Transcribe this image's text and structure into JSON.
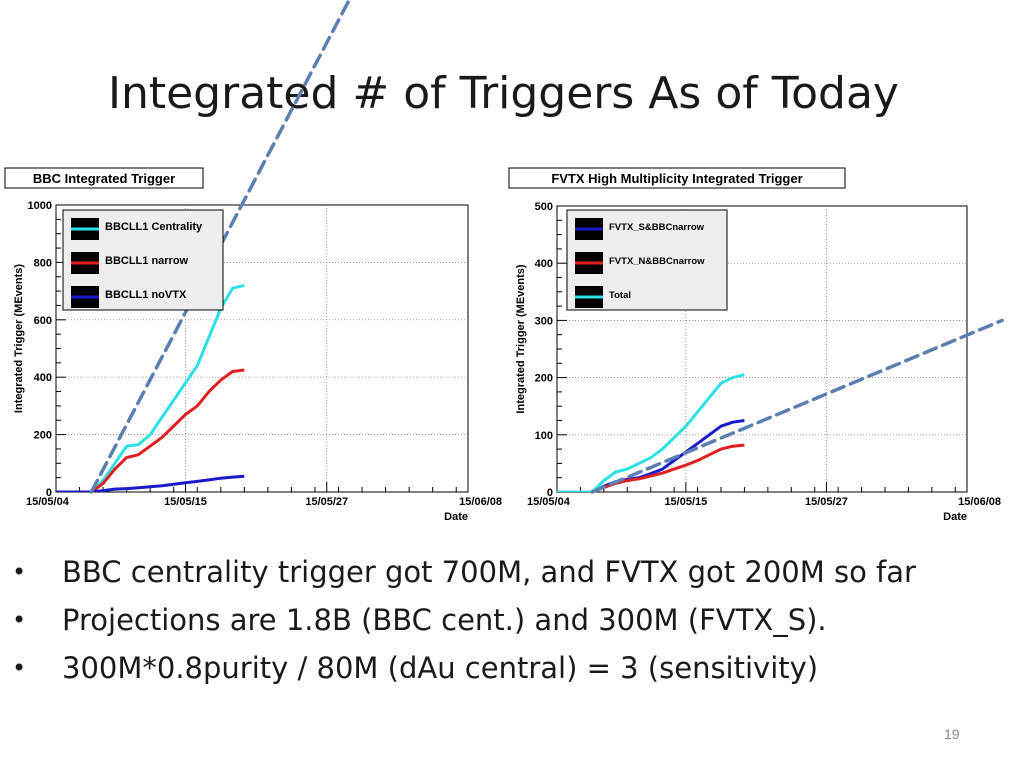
{
  "slide": {
    "title": "Integrated # of Triggers As of Today",
    "page_number": "19",
    "bullets": [
      "BBC centrality trigger got 700M, and FVTX got 200M so far",
      "Projections are 1.8B (BBC cent.) and 300M (FVTX_S).",
      "300M*0.8purity / 80M (dAu central) = 3 (sensitivity)"
    ]
  },
  "chart_data": [
    {
      "type": "line",
      "title": "BBC Integrated Trigger",
      "xlabel": "Date",
      "ylabel": "Integrated Trigger (MEvents)",
      "x_ticks": [
        "15/05/04",
        "15/05/15",
        "15/05/27",
        "15/06/08"
      ],
      "y_ticks": [
        "0",
        "200",
        "400",
        "600",
        "800",
        "1000"
      ],
      "ylim": [
        0,
        1000
      ],
      "grid": true,
      "legend_position": "top-left",
      "series": [
        {
          "name": "BBCLL1 Centrality",
          "color": "#2de0e6",
          "points": [
            [
              "15/05/04",
              0
            ],
            [
              "15/05/07",
              0
            ],
            [
              "15/05/08",
              40
            ],
            [
              "15/05/09",
              100
            ],
            [
              "15/05/10",
              160
            ],
            [
              "15/05/11",
              165
            ],
            [
              "15/05/12",
              200
            ],
            [
              "15/05/13",
              260
            ],
            [
              "15/05/14",
              320
            ],
            [
              "15/05/15",
              380
            ],
            [
              "15/05/16",
              440
            ],
            [
              "15/05/17",
              540
            ],
            [
              "15/05/18",
              640
            ],
            [
              "15/05/19",
              710
            ],
            [
              "15/05/20",
              720
            ]
          ]
        },
        {
          "name": "BBCLL1 narrow",
          "color": "#e02020",
          "points": [
            [
              "15/05/04",
              0
            ],
            [
              "15/05/07",
              0
            ],
            [
              "15/05/08",
              30
            ],
            [
              "15/05/09",
              80
            ],
            [
              "15/05/10",
              120
            ],
            [
              "15/05/11",
              130
            ],
            [
              "15/05/12",
              160
            ],
            [
              "15/05/13",
              190
            ],
            [
              "15/05/14",
              230
            ],
            [
              "15/05/15",
              270
            ],
            [
              "15/05/16",
              300
            ],
            [
              "15/05/17",
              350
            ],
            [
              "15/05/18",
              390
            ],
            [
              "15/05/19",
              420
            ],
            [
              "15/05/20",
              425
            ]
          ]
        },
        {
          "name": "BBCLL1 noVTX",
          "color": "#1a1acc",
          "points": [
            [
              "15/05/04",
              0
            ],
            [
              "15/05/07",
              0
            ],
            [
              "15/05/08",
              5
            ],
            [
              "15/05/09",
              10
            ],
            [
              "15/05/10",
              12
            ],
            [
              "15/05/11",
              15
            ],
            [
              "15/05/12",
              18
            ],
            [
              "15/05/13",
              22
            ],
            [
              "15/05/14",
              27
            ],
            [
              "15/05/15",
              32
            ],
            [
              "15/05/16",
              37
            ],
            [
              "15/05/17",
              42
            ],
            [
              "15/05/18",
              48
            ],
            [
              "15/05/19",
              52
            ],
            [
              "15/05/20",
              55
            ]
          ]
        }
      ],
      "projection": {
        "color": "#5b7fb0",
        "points": [
          [
            "15/05/07",
            0
          ],
          [
            "15/05/30",
            1800
          ]
        ]
      }
    },
    {
      "type": "line",
      "title": "FVTX High Multiplicity Integrated Trigger",
      "xlabel": "Date",
      "ylabel": "Integrated Trigger (MEvents)",
      "x_ticks": [
        "15/05/04",
        "15/05/15",
        "15/05/27",
        "15/06/08"
      ],
      "y_ticks": [
        "0",
        "100",
        "200",
        "300",
        "400",
        "500"
      ],
      "ylim": [
        0,
        500
      ],
      "grid": true,
      "legend_position": "top-left",
      "series": [
        {
          "name": "FVTX_S&BBCnarrow",
          "color": "#1a1acc",
          "points": [
            [
              "15/05/04",
              0
            ],
            [
              "15/05/07",
              0
            ],
            [
              "15/05/08",
              10
            ],
            [
              "15/05/09",
              18
            ],
            [
              "15/05/10",
              22
            ],
            [
              "15/05/11",
              25
            ],
            [
              "15/05/12",
              32
            ],
            [
              "15/05/13",
              40
            ],
            [
              "15/05/14",
              55
            ],
            [
              "15/05/15",
              70
            ],
            [
              "15/05/16",
              85
            ],
            [
              "15/05/17",
              100
            ],
            [
              "15/05/18",
              115
            ],
            [
              "15/05/19",
              122
            ],
            [
              "15/05/20",
              125
            ]
          ]
        },
        {
          "name": "FVTX_N&BBCnarrow",
          "color": "#e02020",
          "points": [
            [
              "15/05/04",
              0
            ],
            [
              "15/05/07",
              0
            ],
            [
              "15/05/08",
              8
            ],
            [
              "15/05/09",
              15
            ],
            [
              "15/05/10",
              20
            ],
            [
              "15/05/11",
              23
            ],
            [
              "15/05/12",
              28
            ],
            [
              "15/05/13",
              33
            ],
            [
              "15/05/14",
              40
            ],
            [
              "15/05/15",
              47
            ],
            [
              "15/05/16",
              55
            ],
            [
              "15/05/17",
              65
            ],
            [
              "15/05/18",
              75
            ],
            [
              "15/05/19",
              80
            ],
            [
              "15/05/20",
              82
            ]
          ]
        },
        {
          "name": "Total",
          "color": "#2de0e6",
          "points": [
            [
              "15/05/04",
              0
            ],
            [
              "15/05/07",
              0
            ],
            [
              "15/05/08",
              20
            ],
            [
              "15/05/09",
              35
            ],
            [
              "15/05/10",
              40
            ],
            [
              "15/05/11",
              50
            ],
            [
              "15/05/12",
              60
            ],
            [
              "15/05/13",
              75
            ],
            [
              "15/05/14",
              95
            ],
            [
              "15/05/15",
              115
            ],
            [
              "15/05/16",
              140
            ],
            [
              "15/05/17",
              165
            ],
            [
              "15/05/18",
              190
            ],
            [
              "15/05/19",
              200
            ],
            [
              "15/05/20",
              205
            ]
          ]
        }
      ],
      "projection": {
        "color": "#5b7fb0",
        "points": [
          [
            "15/05/07",
            0
          ],
          [
            "15/06/11",
            300
          ]
        ]
      }
    }
  ]
}
